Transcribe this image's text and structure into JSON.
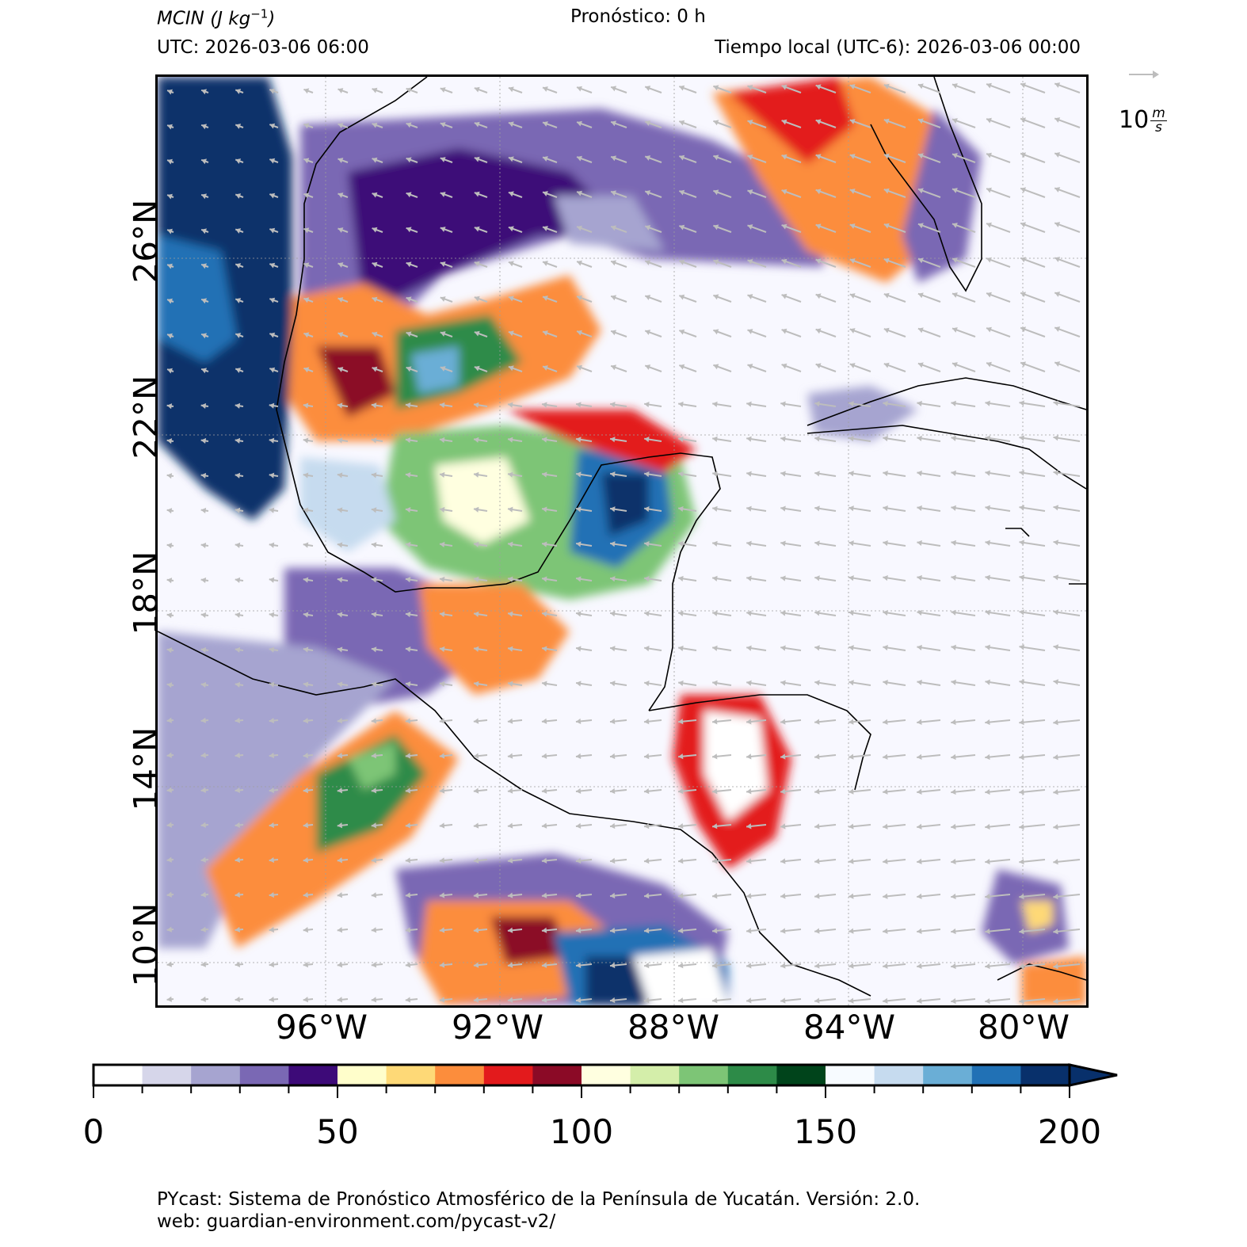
{
  "header": {
    "variable": "MCIN",
    "units_prefix": "(J kg",
    "units_exp": "−1",
    "units_suffix": ")",
    "forecast": "Pronóstico: 0 h",
    "utc": "UTC:  2026-03-06 06:00",
    "local": "Tiempo local (UTC-6): 2026-03-06 00:00"
  },
  "map": {
    "lat_labels": [
      "26°N",
      "22°N",
      "18°N",
      "14°N",
      "10°N"
    ],
    "lon_labels": [
      "96°W",
      "92°W",
      "88°W",
      "84°W",
      "80°W"
    ],
    "wind_arrow_color": "#bdbdbd",
    "coastline_color": "#000000"
  },
  "wind_reference": {
    "value": "10",
    "unit_num": "m",
    "unit_den": "s"
  },
  "colorbar": {
    "ticks": [
      "0",
      "50",
      "100",
      "150",
      "200"
    ],
    "min": 0,
    "max": 200,
    "step": 10,
    "extend": "max",
    "colors": [
      "#ffffff",
      "#d6d6ea",
      "#a6a4d0",
      "#7a68b4",
      "#3d0a78",
      "#fffecb",
      "#fed977",
      "#fc8d3c",
      "#e31a1c",
      "#8b0a26",
      "#ffffe0",
      "#d4eeaa",
      "#7dc576",
      "#2d8b48",
      "#00441b",
      "#f7fbff",
      "#c6dbef",
      "#6aaed6",
      "#2171b5",
      "#08306b"
    ]
  },
  "footer": {
    "line1": "PYcast: Sistema de Pronóstico Atmosférico de la Península de Yucatán. Versión: 2.0.",
    "line2": "web: guardian-environment.com/pycast-v2/"
  }
}
